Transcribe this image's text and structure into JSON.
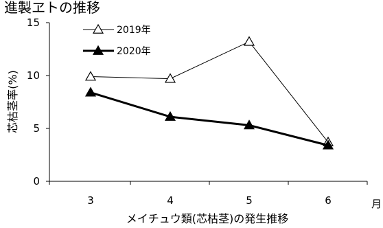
{
  "chart_data": {
    "type": "line",
    "title": "進製ヱトの推移",
    "xlabel": "メイチュウ類(芯枯茎)の発生推移",
    "ylabel": "芯枯茎率(%)",
    "x_unit": "月",
    "categories": [
      "3",
      "4",
      "5",
      "6"
    ],
    "ylim": [
      0,
      15
    ],
    "yticks": [
      "0",
      "5",
      "10",
      "15"
    ],
    "grid": false,
    "legend_position": "top-left",
    "series": [
      {
        "name": "2019年",
        "marker": "open-triangle",
        "line": "thin",
        "color": "#000000",
        "values": [
          9.9,
          9.7,
          13.2,
          3.7
        ]
      },
      {
        "name": "2020年",
        "marker": "filled-triangle",
        "line": "thick",
        "color": "#000000",
        "values": [
          8.4,
          6.1,
          5.3,
          3.4
        ]
      }
    ]
  }
}
